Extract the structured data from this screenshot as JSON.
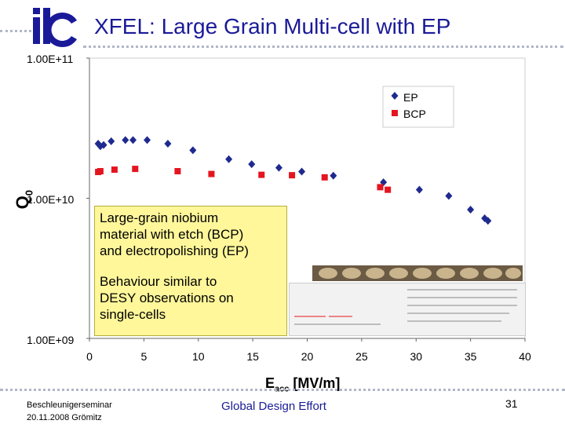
{
  "header": {
    "logo_text": "ilc",
    "title": "XFEL: Large Grain Multi-cell with EP"
  },
  "chart_data": {
    "type": "scatter",
    "title": "",
    "xlabel": "Eacc [MV/m]",
    "xlabel_main": "E",
    "xlabel_sub": "acc",
    "xlabel_units": " [MV/m]",
    "ylabel": "Q0",
    "ylabel_main": "Q",
    "ylabel_sub": "0",
    "yscale": "log",
    "xlim": [
      0,
      40
    ],
    "ylim": [
      1000000000,
      100000000000
    ],
    "xticks": [
      "0",
      "5",
      "10",
      "15",
      "20",
      "25",
      "30",
      "35",
      "40"
    ],
    "yticks": [
      "1.00E+09",
      "1.00E+10",
      "1.00E+11"
    ],
    "grid": false,
    "legend_position": "top-right",
    "series": [
      {
        "name": "EP",
        "color": "#1f2a8f",
        "marker": "diamond",
        "points": [
          [
            0.8,
            24500000000
          ],
          [
            1.0,
            23500000000
          ],
          [
            1.3,
            24000000000
          ],
          [
            2.0,
            25500000000
          ],
          [
            3.3,
            26000000000
          ],
          [
            4.0,
            26000000000
          ],
          [
            5.3,
            26000000000
          ],
          [
            7.2,
            24500000000
          ],
          [
            9.5,
            22000000000
          ],
          [
            12.8,
            19000000000
          ],
          [
            14.9,
            17500000000
          ],
          [
            17.4,
            16500000000
          ],
          [
            19.5,
            15500000000
          ],
          [
            22.4,
            14500000000
          ],
          [
            27.0,
            13000000000
          ],
          [
            30.3,
            11500000000
          ],
          [
            33.0,
            10400000000
          ],
          [
            35.0,
            8300000000
          ],
          [
            36.3,
            7200000000
          ],
          [
            36.6,
            6900000000
          ]
        ]
      },
      {
        "name": "BCP",
        "color": "#e4151f",
        "marker": "square",
        "points": [
          [
            0.8,
            15400000000
          ],
          [
            1.0,
            15600000000
          ],
          [
            2.3,
            16000000000
          ],
          [
            4.2,
            16200000000
          ],
          [
            8.1,
            15600000000
          ],
          [
            11.2,
            14900000000
          ],
          [
            15.8,
            14700000000
          ],
          [
            18.6,
            14600000000
          ],
          [
            21.6,
            14100000000
          ],
          [
            26.7,
            12000000000
          ],
          [
            27.4,
            11500000000
          ]
        ]
      }
    ]
  },
  "callout": {
    "line1": "Large-grain niobium",
    "line2": "material with etch (BCP)",
    "line3": "and electropolishing (EP)",
    "line4": "Behaviour similar to",
    "line5": "DESY observations on",
    "line6": "single-cells"
  },
  "footer": {
    "left_line1": "Beschleunigerseminar",
    "left_line2": "20.11.2008  Grömitz",
    "center": "Global Design Effort",
    "page_number": "31"
  },
  "colors": {
    "title": "#1a1a99",
    "ep": "#1f2a8f",
    "bcp": "#e4151f",
    "callout_bg": "#fff79a"
  }
}
